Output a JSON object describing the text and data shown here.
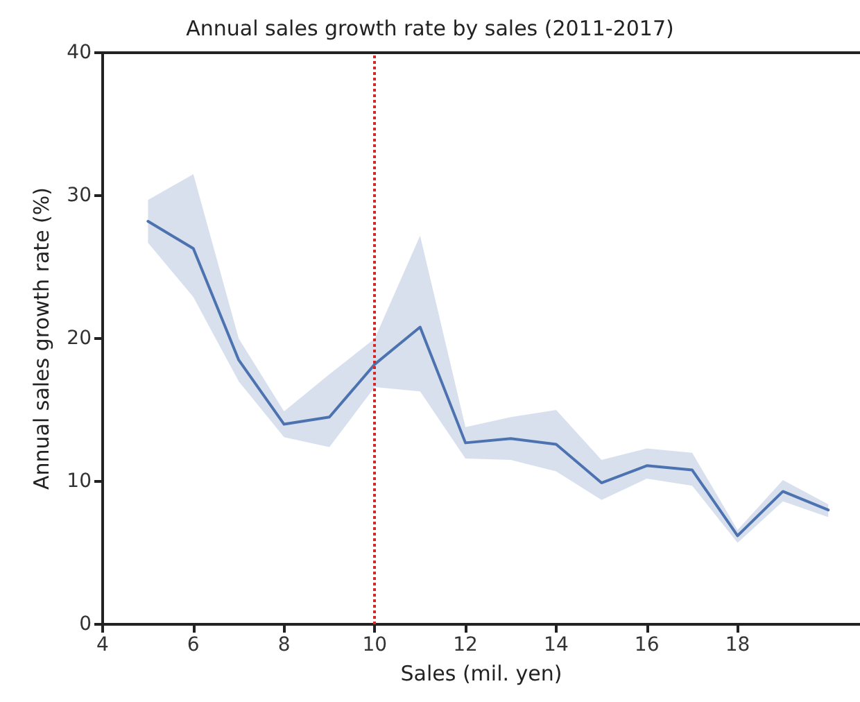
{
  "chart_data": {
    "type": "line",
    "title": "Annual sales growth rate by sales (2011-2017)",
    "xlabel": "Sales (mil. yen)",
    "ylabel": "Annual sales growth rate (%)",
    "x": [
      5,
      6,
      7,
      8,
      9,
      10,
      11,
      12,
      13,
      14,
      15,
      16,
      17,
      18,
      19,
      20
    ],
    "series": [
      {
        "color": "#4c72b0",
        "values": [
          28.2,
          26.3,
          18.5,
          14.0,
          14.5,
          18.2,
          20.8,
          12.7,
          13.0,
          12.6,
          9.9,
          11.1,
          10.8,
          6.2,
          9.3,
          8.0
        ],
        "lower": [
          26.7,
          22.9,
          17.0,
          13.1,
          12.4,
          16.6,
          16.3,
          11.6,
          11.5,
          10.7,
          8.7,
          10.2,
          9.7,
          5.7,
          8.6,
          7.5
        ],
        "upper": [
          29.7,
          31.5,
          20.0,
          14.9,
          17.5,
          20.0,
          27.2,
          13.8,
          14.5,
          15.0,
          11.5,
          12.3,
          12.0,
          6.6,
          10.1,
          8.4
        ]
      }
    ],
    "xlim": [
      4,
      20.7
    ],
    "xticks": [
      4,
      6,
      8,
      10,
      12,
      14,
      16,
      18
    ],
    "ylim": [
      0,
      40
    ],
    "yticks": [
      0,
      10,
      20,
      30,
      40
    ],
    "ref_lines": [
      {
        "axis": "x",
        "value": 10,
        "color": "#d62728",
        "line_style": "dotted"
      }
    ],
    "grid": false,
    "marker": "none",
    "line_style": "solid"
  }
}
